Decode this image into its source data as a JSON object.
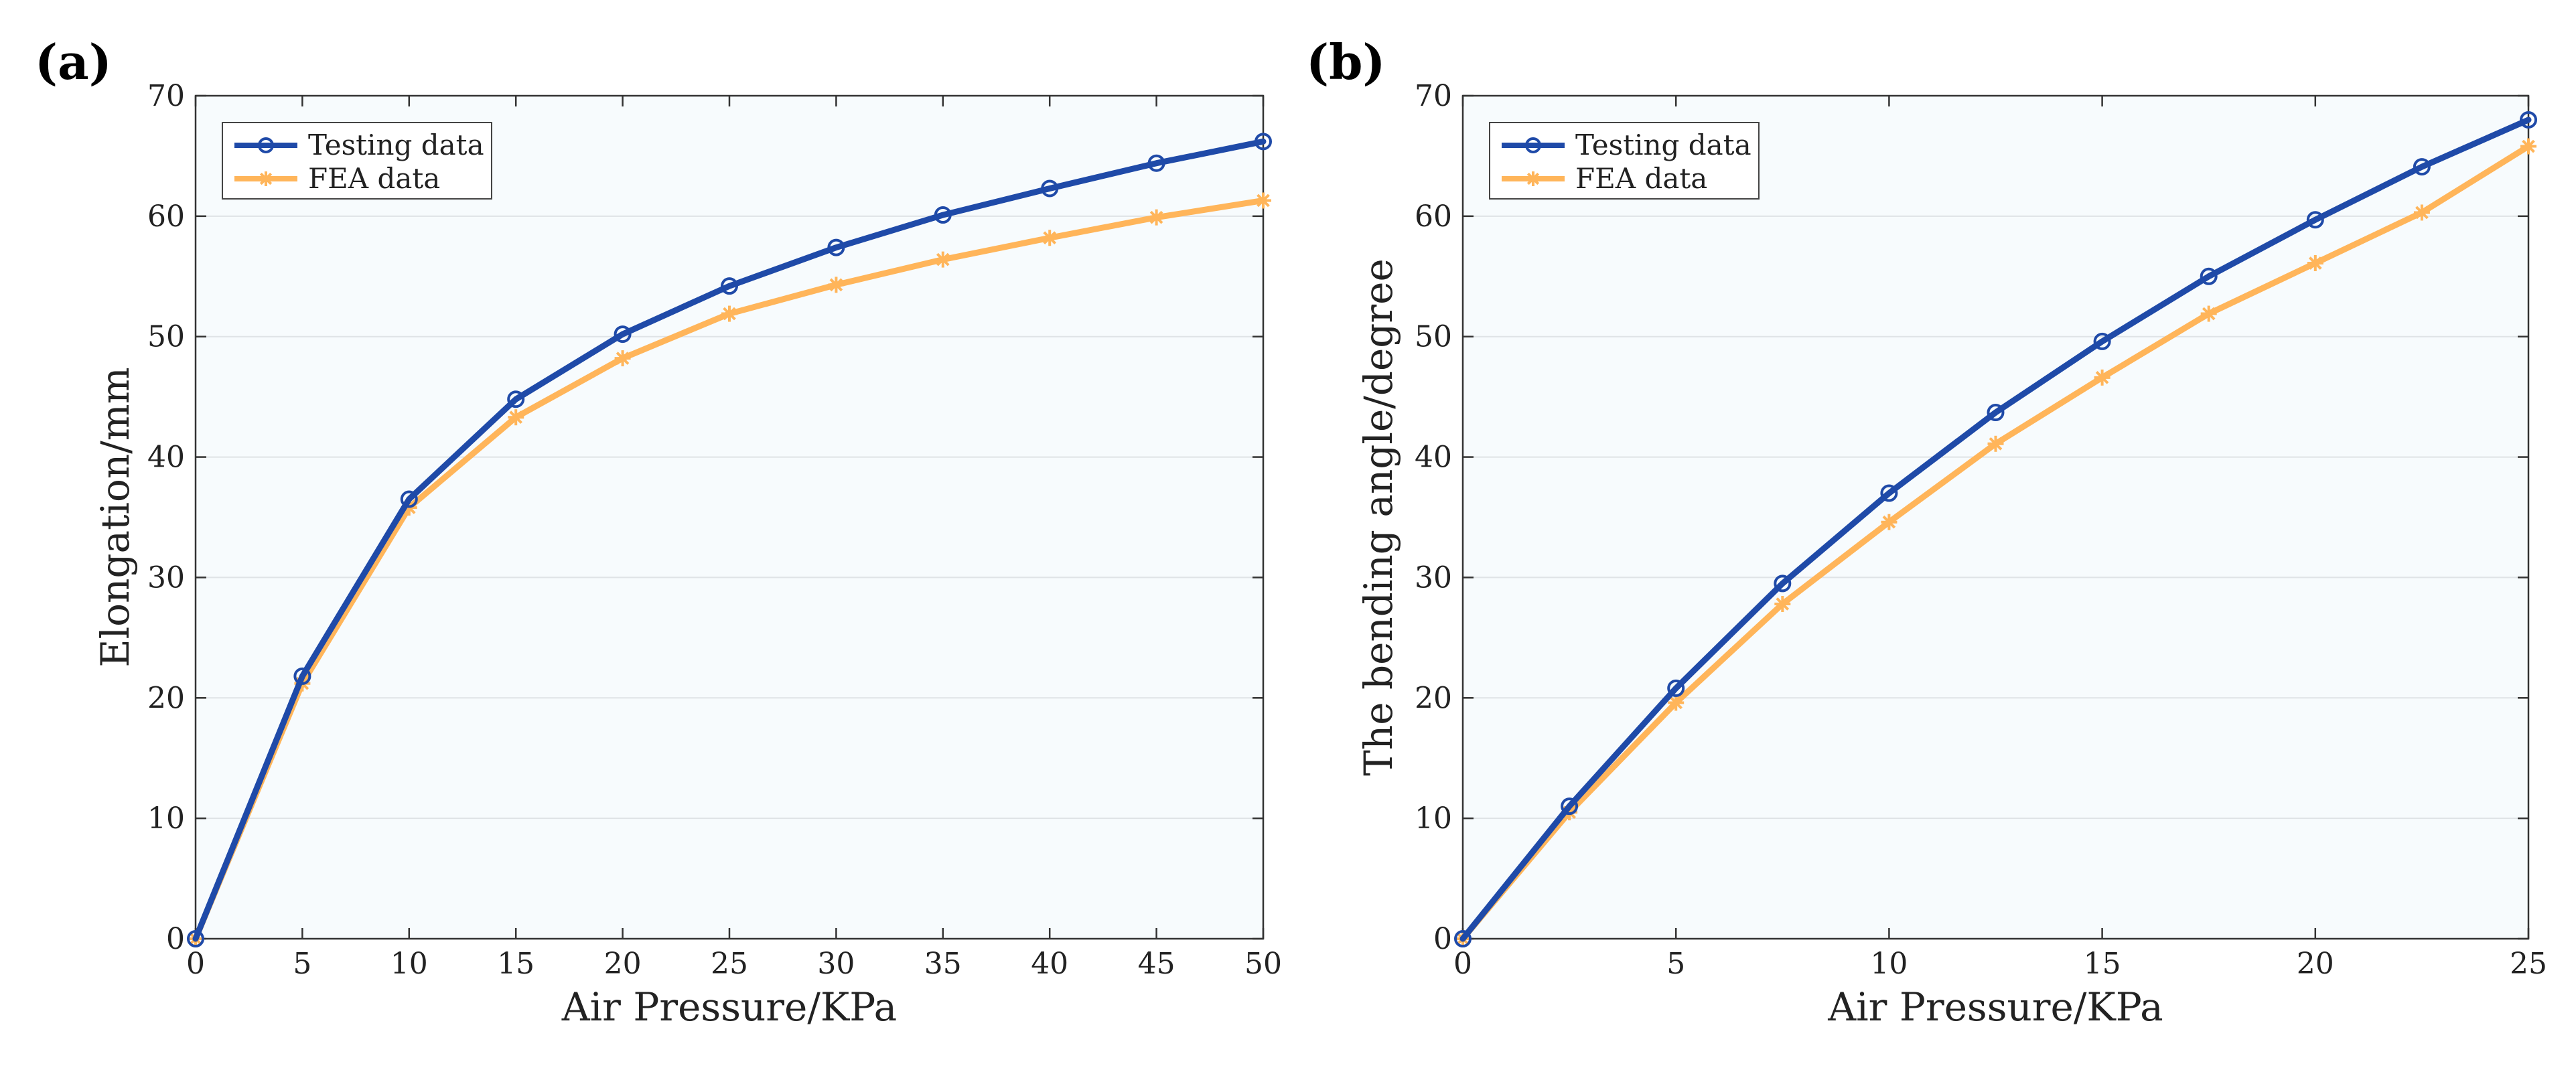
{
  "chart_data": [
    {
      "panel_label": "(a)",
      "type": "line",
      "xlabel": "Air Pressure/KPa",
      "ylabel": "Elongation/mm",
      "xlim": [
        0,
        50
      ],
      "ylim": [
        0,
        70
      ],
      "xticks": [
        0,
        5,
        10,
        15,
        20,
        25,
        30,
        35,
        40,
        45,
        50
      ],
      "yticks": [
        0,
        10,
        20,
        30,
        40,
        50,
        60,
        70
      ],
      "grid": "horizontal",
      "legend_position": "top-left",
      "x": [
        0,
        5,
        10,
        15,
        20,
        25,
        30,
        35,
        40,
        45,
        50
      ],
      "series": [
        {
          "name": "Testing data",
          "color": "#1f4aa8",
          "marker": "circle",
          "values": [
            0,
            21.8,
            36.5,
            44.8,
            50.2,
            54.2,
            57.4,
            60.1,
            62.3,
            64.4,
            66.2
          ]
        },
        {
          "name": "FEA data",
          "color": "#ffb55a",
          "marker": "asterisk",
          "values": [
            0,
            21.2,
            35.8,
            43.3,
            48.2,
            51.9,
            54.3,
            56.4,
            58.2,
            59.9,
            61.3
          ]
        }
      ]
    },
    {
      "panel_label": "(b)",
      "type": "line",
      "xlabel": "Air Pressure/KPa",
      "ylabel": "The bending angle/degree",
      "xlim": [
        0,
        25
      ],
      "ylim": [
        0,
        70
      ],
      "xticks": [
        0,
        5,
        10,
        15,
        20,
        25
      ],
      "yticks": [
        0,
        10,
        20,
        30,
        40,
        50,
        60,
        70
      ],
      "grid": "horizontal",
      "legend_position": "top-left",
      "x": [
        0,
        2.5,
        5,
        7.5,
        10,
        12.5,
        15,
        17.5,
        20,
        22.5,
        25
      ],
      "series": [
        {
          "name": "Testing data",
          "color": "#1f4aa8",
          "marker": "circle",
          "values": [
            0,
            11.0,
            20.8,
            29.5,
            37.0,
            43.7,
            49.6,
            55.0,
            59.7,
            64.1,
            68.0
          ]
        },
        {
          "name": "FEA data",
          "color": "#ffb55a",
          "marker": "asterisk",
          "values": [
            0,
            10.5,
            19.6,
            27.8,
            34.6,
            41.1,
            46.6,
            51.9,
            56.1,
            60.3,
            65.8
          ]
        }
      ]
    }
  ]
}
